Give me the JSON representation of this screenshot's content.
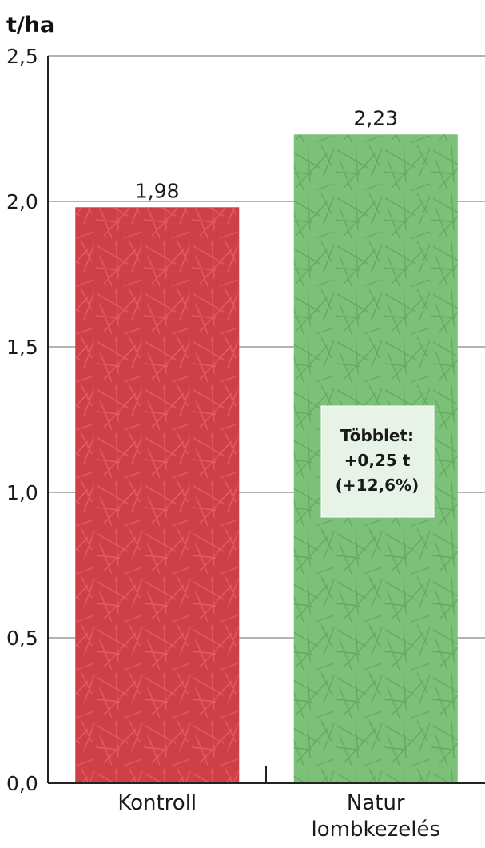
{
  "chart_data": {
    "type": "bar",
    "ylabel": "t/ha",
    "ylim": [
      0,
      2.5
    ],
    "yticks": [
      "0,0",
      "0,5",
      "1,0",
      "1,5",
      "2,0",
      "2,5"
    ],
    "ytick_values": [
      0,
      0.5,
      1.0,
      1.5,
      2.0,
      2.5
    ],
    "categories": [
      "Kontroll",
      "Natur lombkezelés"
    ],
    "category_lines": [
      [
        "Kontroll"
      ],
      [
        "Natur",
        "lombkezelés"
      ]
    ],
    "values": [
      1.98,
      2.23
    ],
    "value_labels": [
      "1,98",
      "2,23"
    ],
    "colors": [
      "#cf3f47",
      "#7cc07a"
    ],
    "grid": true,
    "annotation": {
      "lines": [
        "Többlet:",
        "+0,25 t",
        "(+12,6%)"
      ],
      "category": "Natur lombkezelés"
    }
  }
}
